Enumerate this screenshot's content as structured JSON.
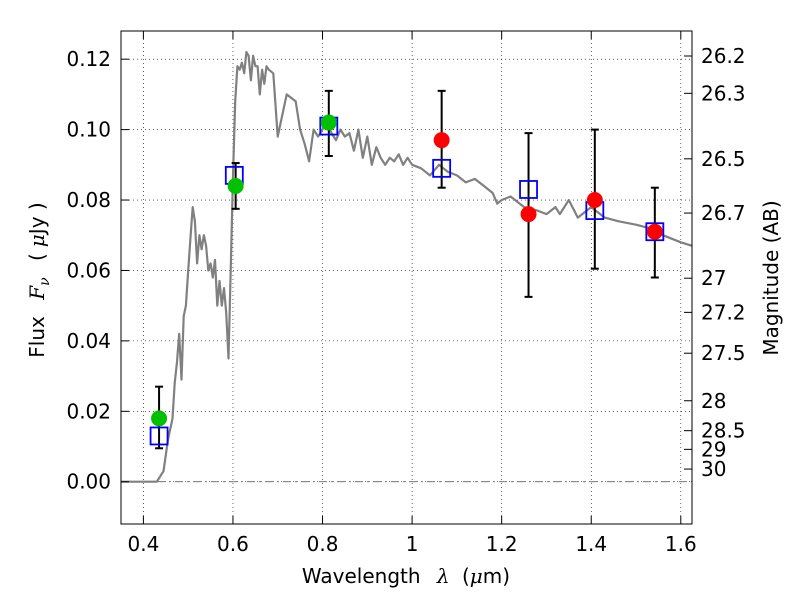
{
  "chart_data": {
    "type": "scatter",
    "xlabel_prefix": "Wavelength",
    "xlabel_symbol": "λ",
    "xlabel_unit_open": "(",
    "xlabel_unit_mu": "μ",
    "xlabel_unit_rest": "m)",
    "ylabel_prefix": "Flux",
    "ylabel_symbol": "F",
    "ylabel_sub": "ν",
    "ylabel_unit_open": "(",
    "ylabel_unit_mu": "μ",
    "ylabel_unit_rest": "Jy )",
    "y2label": "Magnitude (AB)",
    "xlim": [
      0.35,
      1.625
    ],
    "ylim": [
      -0.012,
      0.128
    ],
    "grid": true,
    "x_ticks": [
      0.4,
      0.6,
      0.8,
      1.0,
      1.2,
      1.4,
      1.6
    ],
    "x_tick_labels": [
      "0.4",
      "0.6",
      "0.8",
      "1",
      "1.2",
      "1.4",
      "1.6"
    ],
    "y_ticks": [
      0.0,
      0.02,
      0.04,
      0.06,
      0.08,
      0.1,
      0.12
    ],
    "y_tick_labels": [
      "0.00",
      "0.02",
      "0.04",
      "0.06",
      "0.08",
      "0.10",
      "0.12"
    ],
    "y2_ticks": [
      {
        "label": "26.2",
        "flux": 0.1209
      },
      {
        "label": "26.3",
        "flux": 0.1103
      },
      {
        "label": "26.5",
        "flux": 0.0917
      },
      {
        "label": "26.7",
        "flux": 0.0763
      },
      {
        "label": "27",
        "flux": 0.0578
      },
      {
        "label": "27.2",
        "flux": 0.0481
      },
      {
        "label": "27.5",
        "flux": 0.0365
      },
      {
        "label": "28",
        "flux": 0.023
      },
      {
        "label": "28.5",
        "flux": 0.0145
      },
      {
        "label": "29",
        "flux": 0.0092
      },
      {
        "label": "30",
        "flux": 0.0036
      }
    ],
    "zero_line": 0,
    "model_spectrum": {
      "color": "#808080",
      "x": [
        0.35,
        0.43,
        0.445,
        0.455,
        0.465,
        0.47,
        0.475,
        0.48,
        0.485,
        0.49,
        0.495,
        0.5,
        0.505,
        0.51,
        0.515,
        0.52,
        0.525,
        0.53,
        0.535,
        0.54,
        0.545,
        0.55,
        0.555,
        0.56,
        0.565,
        0.57,
        0.575,
        0.58,
        0.585,
        0.59,
        0.595,
        0.6,
        0.605,
        0.61,
        0.615,
        0.62,
        0.625,
        0.63,
        0.635,
        0.64,
        0.645,
        0.65,
        0.655,
        0.66,
        0.665,
        0.67,
        0.675,
        0.68,
        0.69,
        0.7,
        0.71,
        0.72,
        0.73,
        0.74,
        0.75,
        0.76,
        0.77,
        0.78,
        0.79,
        0.8,
        0.81,
        0.82,
        0.83,
        0.84,
        0.85,
        0.86,
        0.87,
        0.88,
        0.89,
        0.9,
        0.91,
        0.92,
        0.93,
        0.94,
        0.95,
        0.96,
        0.97,
        0.98,
        0.99,
        1.0,
        1.02,
        1.04,
        1.06,
        1.08,
        1.1,
        1.12,
        1.14,
        1.16,
        1.18,
        1.19,
        1.2,
        1.22,
        1.25,
        1.28,
        1.3,
        1.32,
        1.33,
        1.35,
        1.37,
        1.4,
        1.43,
        1.46,
        1.5,
        1.53,
        1.56,
        1.6,
        1.625
      ],
      "y": [
        0.0,
        0.0,
        0.003,
        0.012,
        0.018,
        0.028,
        0.034,
        0.042,
        0.029,
        0.047,
        0.05,
        0.06,
        0.069,
        0.078,
        0.074,
        0.062,
        0.07,
        0.066,
        0.07,
        0.067,
        0.06,
        0.062,
        0.058,
        0.063,
        0.05,
        0.057,
        0.05,
        0.055,
        0.048,
        0.035,
        0.06,
        0.087,
        0.108,
        0.118,
        0.117,
        0.119,
        0.116,
        0.122,
        0.121,
        0.114,
        0.121,
        0.118,
        0.118,
        0.11,
        0.117,
        0.113,
        0.118,
        0.117,
        0.116,
        0.098,
        0.104,
        0.11,
        0.109,
        0.108,
        0.1,
        0.096,
        0.091,
        0.1,
        0.098,
        0.1,
        0.102,
        0.099,
        0.097,
        0.1,
        0.098,
        0.099,
        0.094,
        0.1,
        0.092,
        0.098,
        0.09,
        0.095,
        0.092,
        0.09,
        0.092,
        0.091,
        0.093,
        0.09,
        0.092,
        0.09,
        0.089,
        0.087,
        0.09,
        0.088,
        0.087,
        0.085,
        0.086,
        0.084,
        0.082,
        0.079,
        0.08,
        0.081,
        0.078,
        0.077,
        0.076,
        0.078,
        0.076,
        0.08,
        0.075,
        0.078,
        0.075,
        0.074,
        0.073,
        0.072,
        0.07,
        0.068,
        0.067
      ]
    },
    "series": [
      {
        "marker": "open-square",
        "color": "#0000ff",
        "x": [
          0.435,
          0.603,
          0.814,
          1.066,
          1.26,
          1.408,
          1.542
        ],
        "y": [
          0.013,
          0.087,
          0.101,
          0.089,
          0.083,
          0.077,
          0.071
        ]
      },
      {
        "marker": "filled-circle",
        "color": "#00c000",
        "x": [
          0.435,
          0.606,
          0.814
        ],
        "y": [
          0.018,
          0.084,
          0.102
        ],
        "yerr_low": [
          0.0085,
          0.0065,
          0.0095
        ],
        "yerr_high": [
          0.009,
          0.0065,
          0.009
        ]
      },
      {
        "marker": "filled-circle",
        "color": "#ff0000",
        "x": [
          1.066,
          1.26,
          1.408,
          1.542
        ],
        "y": [
          0.097,
          0.076,
          0.08,
          0.071
        ],
        "yerr_low": [
          0.0135,
          0.0235,
          0.0195,
          0.013
        ],
        "yerr_high": [
          0.014,
          0.023,
          0.02,
          0.0125
        ]
      }
    ]
  }
}
